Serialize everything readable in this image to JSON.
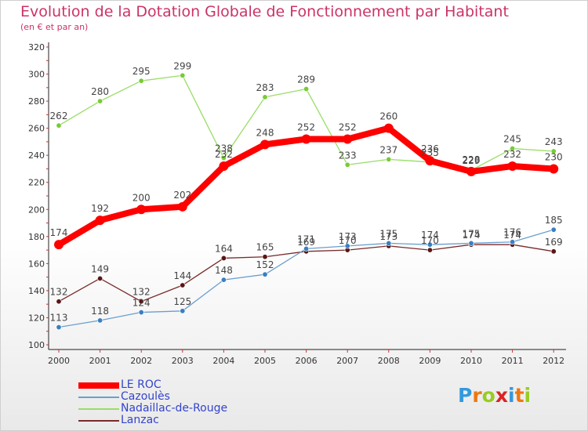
{
  "header": {
    "title": "Evolution de la Dotation Globale de Fonctionnement par Habitant",
    "subtitle": "(en € et par an)"
  },
  "chart_data": {
    "type": "line",
    "x": [
      "2000",
      "2001",
      "2002",
      "2003",
      "2004",
      "2005",
      "2006",
      "2007",
      "2008",
      "2009",
      "2010",
      "2011",
      "2012"
    ],
    "ylim": [
      100,
      320
    ],
    "yticks": [
      100,
      120,
      140,
      160,
      180,
      200,
      220,
      240,
      260,
      280,
      300,
      320
    ],
    "grid": false,
    "legend_position": "bottom-left",
    "series": [
      {
        "name": "LE ROC",
        "values": [
          174,
          192,
          200,
          202,
          232,
          248,
          252,
          252,
          260,
          236,
          228,
          232,
          230
        ],
        "color": "#ff0000",
        "marker": "#ff0000"
      },
      {
        "name": "Cazoulès",
        "values": [
          113,
          118,
          124,
          125,
          148,
          152,
          171,
          173,
          175,
          174,
          175,
          176,
          185
        ],
        "color": "#6a9fcf",
        "marker": "#3a7fc0"
      },
      {
        "name": "Nadaillac-de-Rouge",
        "values": [
          262,
          280,
          295,
          299,
          238,
          283,
          289,
          233,
          237,
          235,
          229,
          245,
          243
        ],
        "color": "#99dd66",
        "marker": "#77cc33"
      },
      {
        "name": "Lanzac",
        "values": [
          132,
          149,
          132,
          144,
          164,
          165,
          169,
          170,
          173,
          170,
          174,
          174,
          169
        ],
        "color": "#7a2a2a",
        "marker": "#5a1515"
      }
    ],
    "data_labels": {
      "LE ROC": [
        "174",
        "192",
        "200",
        "202",
        "232",
        "248",
        "252",
        "252",
        "260",
        "236",
        "228",
        "232",
        "230"
      ],
      "Cazoulès": [
        "113",
        "118",
        "124",
        "125",
        "148",
        "152",
        "171",
        "173",
        "175",
        "174",
        "175",
        "176",
        "185"
      ],
      "Nadaillac-de-Rouge": [
        "262",
        "280",
        "295",
        "299",
        "238",
        "283",
        "289",
        "233",
        "237",
        "235",
        "229",
        "245",
        "243"
      ],
      "Lanzac": [
        "132",
        "149",
        "132",
        "144",
        "164",
        "165",
        "169",
        "170",
        "173",
        "170",
        "174",
        "174",
        "169"
      ]
    }
  },
  "logo": {
    "text": "Proxiti",
    "letters": [
      {
        "ch": "P",
        "color": "#3399dd"
      },
      {
        "ch": "r",
        "color": "#ee7711"
      },
      {
        "ch": "o",
        "color": "#99cc22"
      },
      {
        "ch": "x",
        "color": "#dd2222"
      },
      {
        "ch": "i",
        "color": "#3399dd"
      },
      {
        "ch": "t",
        "color": "#ee7711"
      },
      {
        "ch": "i",
        "color": "#99cc22"
      }
    ]
  }
}
